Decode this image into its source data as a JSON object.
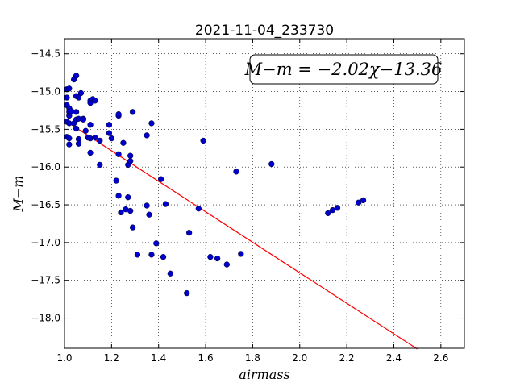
{
  "chart_data": {
    "type": "scatter",
    "title": "2021-11-04_233730",
    "xlabel": "airmass",
    "ylabel": "M−m",
    "xlim": [
      1.0,
      2.7
    ],
    "ylim": [
      -18.4,
      -14.3
    ],
    "y_inverted": true,
    "grid": true,
    "grid_style": "dotted",
    "x_ticks": [
      1.0,
      1.2,
      1.4,
      1.6,
      1.8,
      2.0,
      2.2,
      2.4,
      2.6
    ],
    "x_tick_labels": [
      "1.0",
      "1.2",
      "1.4",
      "1.6",
      "1.8",
      "2.0",
      "2.2",
      "2.4",
      "2.6"
    ],
    "y_ticks": [
      -14.5,
      -15.0,
      -15.5,
      -16.0,
      -16.5,
      -17.0,
      -17.5,
      -18.0
    ],
    "y_tick_labels": [
      "−14.5",
      "−15.0",
      "−15.5",
      "−16.0",
      "−16.5",
      "−17.0",
      "−17.5",
      "−18.0"
    ],
    "fit": {
      "slope": -2.02,
      "intercept": -13.36,
      "x_range": [
        1.0,
        2.5
      ],
      "label": "M−m = −2.02χ−13.36",
      "color": "#ff0000",
      "legend_position": "top-right"
    },
    "point_color": "#0000cd",
    "points": [
      [
        1.01,
        -14.97
      ],
      [
        1.02,
        -14.96
      ],
      [
        1.01,
        -15.08
      ],
      [
        1.01,
        -15.18
      ],
      [
        1.02,
        -15.22
      ],
      [
        1.02,
        -15.27
      ],
      [
        1.03,
        -15.26
      ],
      [
        1.02,
        -15.32
      ],
      [
        1.01,
        -15.4
      ],
      [
        1.02,
        -15.42
      ],
      [
        1.01,
        -15.6
      ],
      [
        1.02,
        -15.62
      ],
      [
        1.02,
        -15.7
      ],
      [
        1.04,
        -14.84
      ],
      [
        1.05,
        -14.79
      ],
      [
        1.05,
        -15.06
      ],
      [
        1.06,
        -15.08
      ],
      [
        1.07,
        -15.02
      ],
      [
        1.05,
        -15.27
      ],
      [
        1.04,
        -15.42
      ],
      [
        1.05,
        -15.37
      ],
      [
        1.06,
        -15.36
      ],
      [
        1.05,
        -15.49
      ],
      [
        1.06,
        -15.63
      ],
      [
        1.06,
        -15.69
      ],
      [
        1.08,
        -15.36
      ],
      [
        1.08,
        -15.37
      ],
      [
        1.09,
        -15.52
      ],
      [
        1.1,
        -15.61
      ],
      [
        1.11,
        -15.12
      ],
      [
        1.11,
        -15.15
      ],
      [
        1.12,
        -15.1
      ],
      [
        1.13,
        -15.12
      ],
      [
        1.11,
        -15.44
      ],
      [
        1.11,
        -15.62
      ],
      [
        1.13,
        -15.61
      ],
      [
        1.15,
        -15.65
      ],
      [
        1.11,
        -15.81
      ],
      [
        1.15,
        -15.97
      ],
      [
        1.19,
        -15.44
      ],
      [
        1.19,
        -15.55
      ],
      [
        1.2,
        -15.62
      ],
      [
        1.23,
        -15.32
      ],
      [
        1.23,
        -15.3
      ],
      [
        1.25,
        -15.68
      ],
      [
        1.23,
        -15.83
      ],
      [
        1.27,
        -15.97
      ],
      [
        1.28,
        -15.85
      ],
      [
        1.28,
        -15.92
      ],
      [
        1.29,
        -15.27
      ],
      [
        1.22,
        -16.18
      ],
      [
        1.23,
        -16.38
      ],
      [
        1.27,
        -16.4
      ],
      [
        1.24,
        -16.6
      ],
      [
        1.26,
        -16.56
      ],
      [
        1.28,
        -16.58
      ],
      [
        1.29,
        -16.8
      ],
      [
        1.31,
        -17.16
      ],
      [
        1.35,
        -15.58
      ],
      [
        1.37,
        -15.42
      ],
      [
        1.35,
        -16.51
      ],
      [
        1.36,
        -16.63
      ],
      [
        1.41,
        -16.16
      ],
      [
        1.43,
        -16.49
      ],
      [
        1.37,
        -17.16
      ],
      [
        1.39,
        -17.01
      ],
      [
        1.42,
        -17.19
      ],
      [
        1.45,
        -17.41
      ],
      [
        1.52,
        -17.67
      ],
      [
        1.53,
        -16.87
      ],
      [
        1.57,
        -16.55
      ],
      [
        1.59,
        -15.65
      ],
      [
        1.62,
        -17.19
      ],
      [
        1.65,
        -17.21
      ],
      [
        1.69,
        -17.29
      ],
      [
        1.73,
        -16.06
      ],
      [
        1.75,
        -17.15
      ],
      [
        1.88,
        -15.96
      ],
      [
        2.12,
        -16.61
      ],
      [
        2.14,
        -16.57
      ],
      [
        2.16,
        -16.54
      ],
      [
        2.25,
        -16.47
      ],
      [
        2.27,
        -16.44
      ]
    ]
  }
}
